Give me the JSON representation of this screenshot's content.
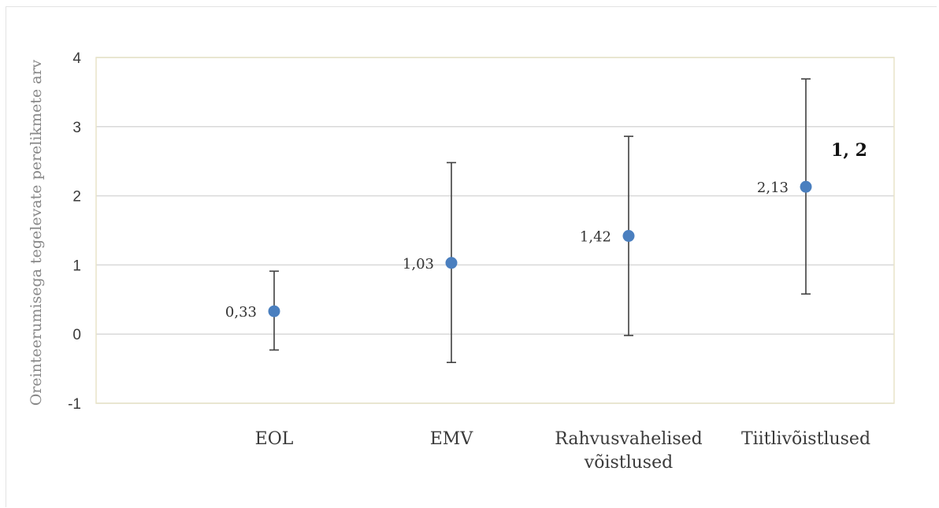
{
  "chart_data": {
    "type": "scatter",
    "title": "",
    "ylabel": "Oreinteerumisega tegelevate perelikmete arv",
    "xlabel": "",
    "categories": [
      [
        "EOL"
      ],
      [
        "EMV"
      ],
      [
        "Rahvusvahelised",
        "võistlused"
      ],
      [
        "Tiitlivõistlused"
      ]
    ],
    "values": [
      0.33,
      1.03,
      1.42,
      2.13
    ],
    "value_labels": [
      "0,33",
      "1,03",
      "1,42",
      "2,13"
    ],
    "error_lower": [
      -0.23,
      -0.41,
      -0.02,
      0.58
    ],
    "error_upper": [
      0.91,
      2.48,
      2.86,
      3.69
    ],
    "ylim": [
      -1,
      4
    ],
    "yticks": [
      -1,
      0,
      1,
      2,
      3,
      4
    ],
    "grid": true,
    "marker_color": "#4a7fbf",
    "errorbar_color": "#404040",
    "grid_color": "#d9d9d9",
    "plot_border_color": "#e8e3c8",
    "annotation": {
      "text": "1, 2",
      "category_index": 3
    }
  }
}
